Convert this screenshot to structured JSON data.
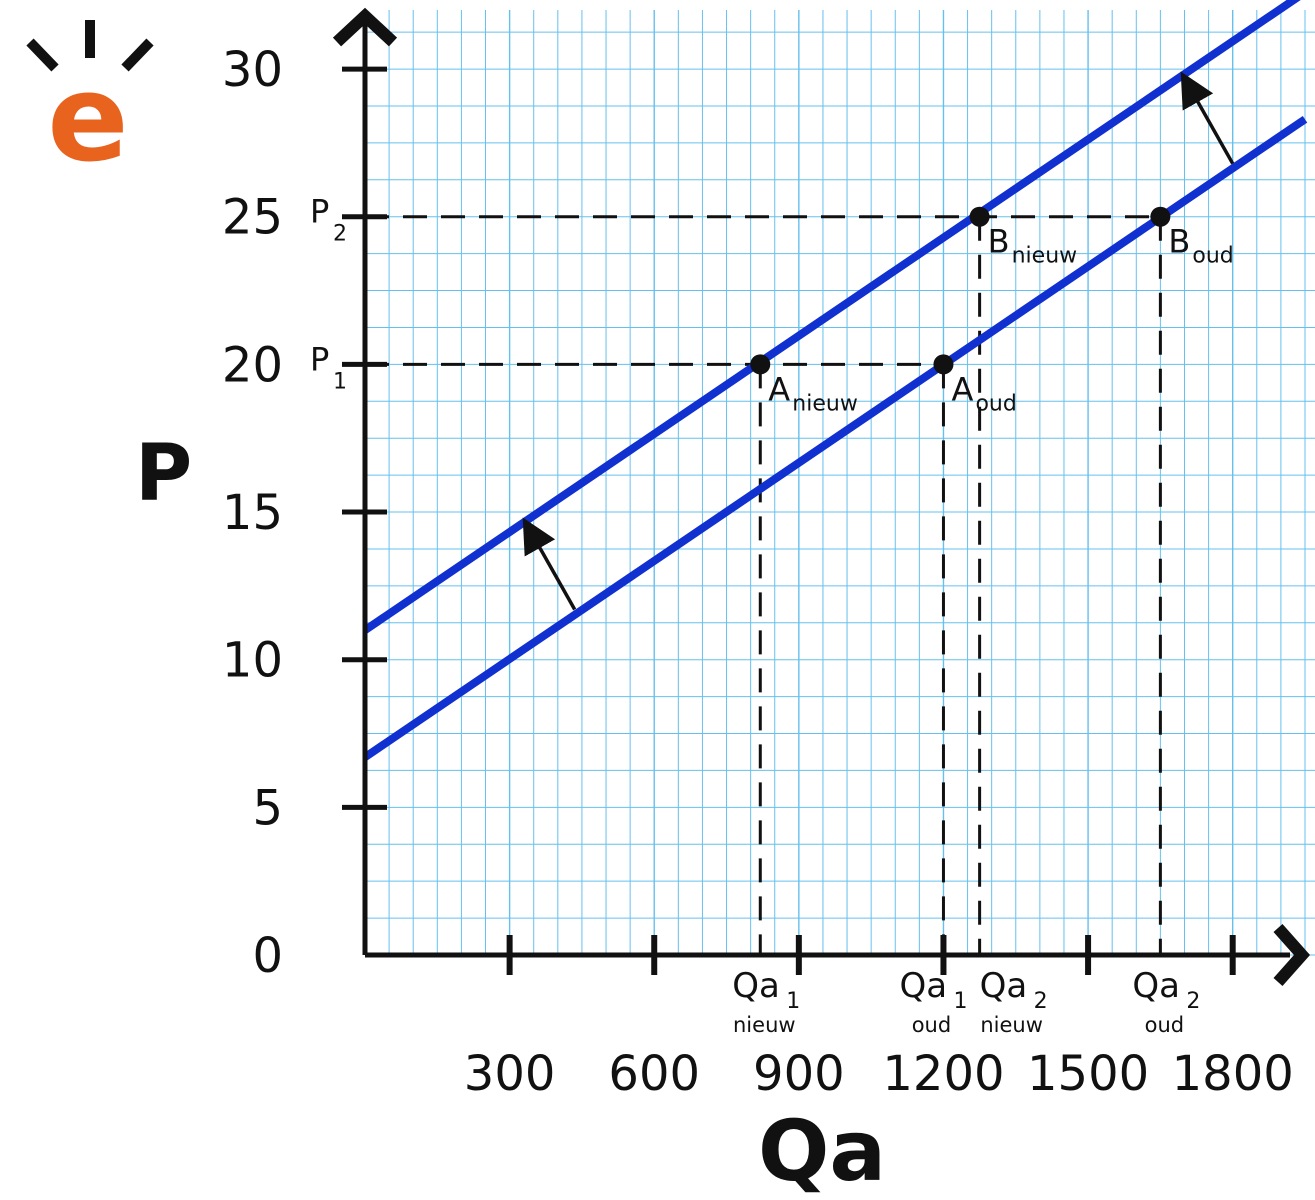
{
  "chart_data": {
    "type": "line",
    "title": "",
    "xlabel": "Qa",
    "ylabel": "P",
    "xlim": [
      0,
      1950
    ],
    "ylim": [
      0,
      32
    ],
    "x_ticks": [
      300,
      600,
      900,
      1200,
      1500,
      1800
    ],
    "y_ticks": [
      0,
      5,
      10,
      15,
      20,
      25,
      30
    ],
    "grid": true,
    "series": [
      {
        "name": "",
        "x": [
          0,
          1950
        ],
        "y": [
          6.7,
          28.3
        ],
        "color": "#1130d0"
      },
      {
        "name": "",
        "x": [
          0,
          1950
        ],
        "y": [
          11.0,
          32.6
        ],
        "color": "#1130d0"
      }
    ],
    "points": [
      {
        "label": "A",
        "sub": "nieuw",
        "x": 820,
        "y": 20
      },
      {
        "label": "A",
        "sub": "oud",
        "x": 1200,
        "y": 20
      },
      {
        "label": "B",
        "sub": "nieuw",
        "x": 1275,
        "y": 25
      },
      {
        "label": "B",
        "sub": "oud",
        "x": 1650,
        "y": 25
      }
    ],
    "price_labels": [
      {
        "label": "P",
        "sub": "1",
        "y": 20
      },
      {
        "label": "P",
        "sub": "2",
        "y": 25
      }
    ],
    "quantity_labels": [
      {
        "label": "Qa",
        "sub": "1",
        "below": "nieuw",
        "x": 820
      },
      {
        "label": "Qa",
        "sub": "1",
        "below": "oud",
        "x": 1200
      },
      {
        "label": "Qa",
        "sub": "2",
        "below": "nieuw",
        "x": 1275
      },
      {
        "label": "Qa",
        "sub": "2",
        "below": "oud",
        "x": 1650
      }
    ],
    "shift_arrows": [
      {
        "from": [
          435,
          11.7
        ],
        "to": [
          345,
          14.3
        ]
      },
      {
        "from": [
          1800,
          26.8
        ],
        "to": [
          1710,
          29.4
        ]
      }
    ],
    "colors": {
      "grid": "#66c0ee",
      "curve": "#1130d0",
      "axis": "#111111",
      "logo": "#e8641e"
    }
  },
  "logo": {
    "icon": "e-logo-icon",
    "letter": "e"
  }
}
